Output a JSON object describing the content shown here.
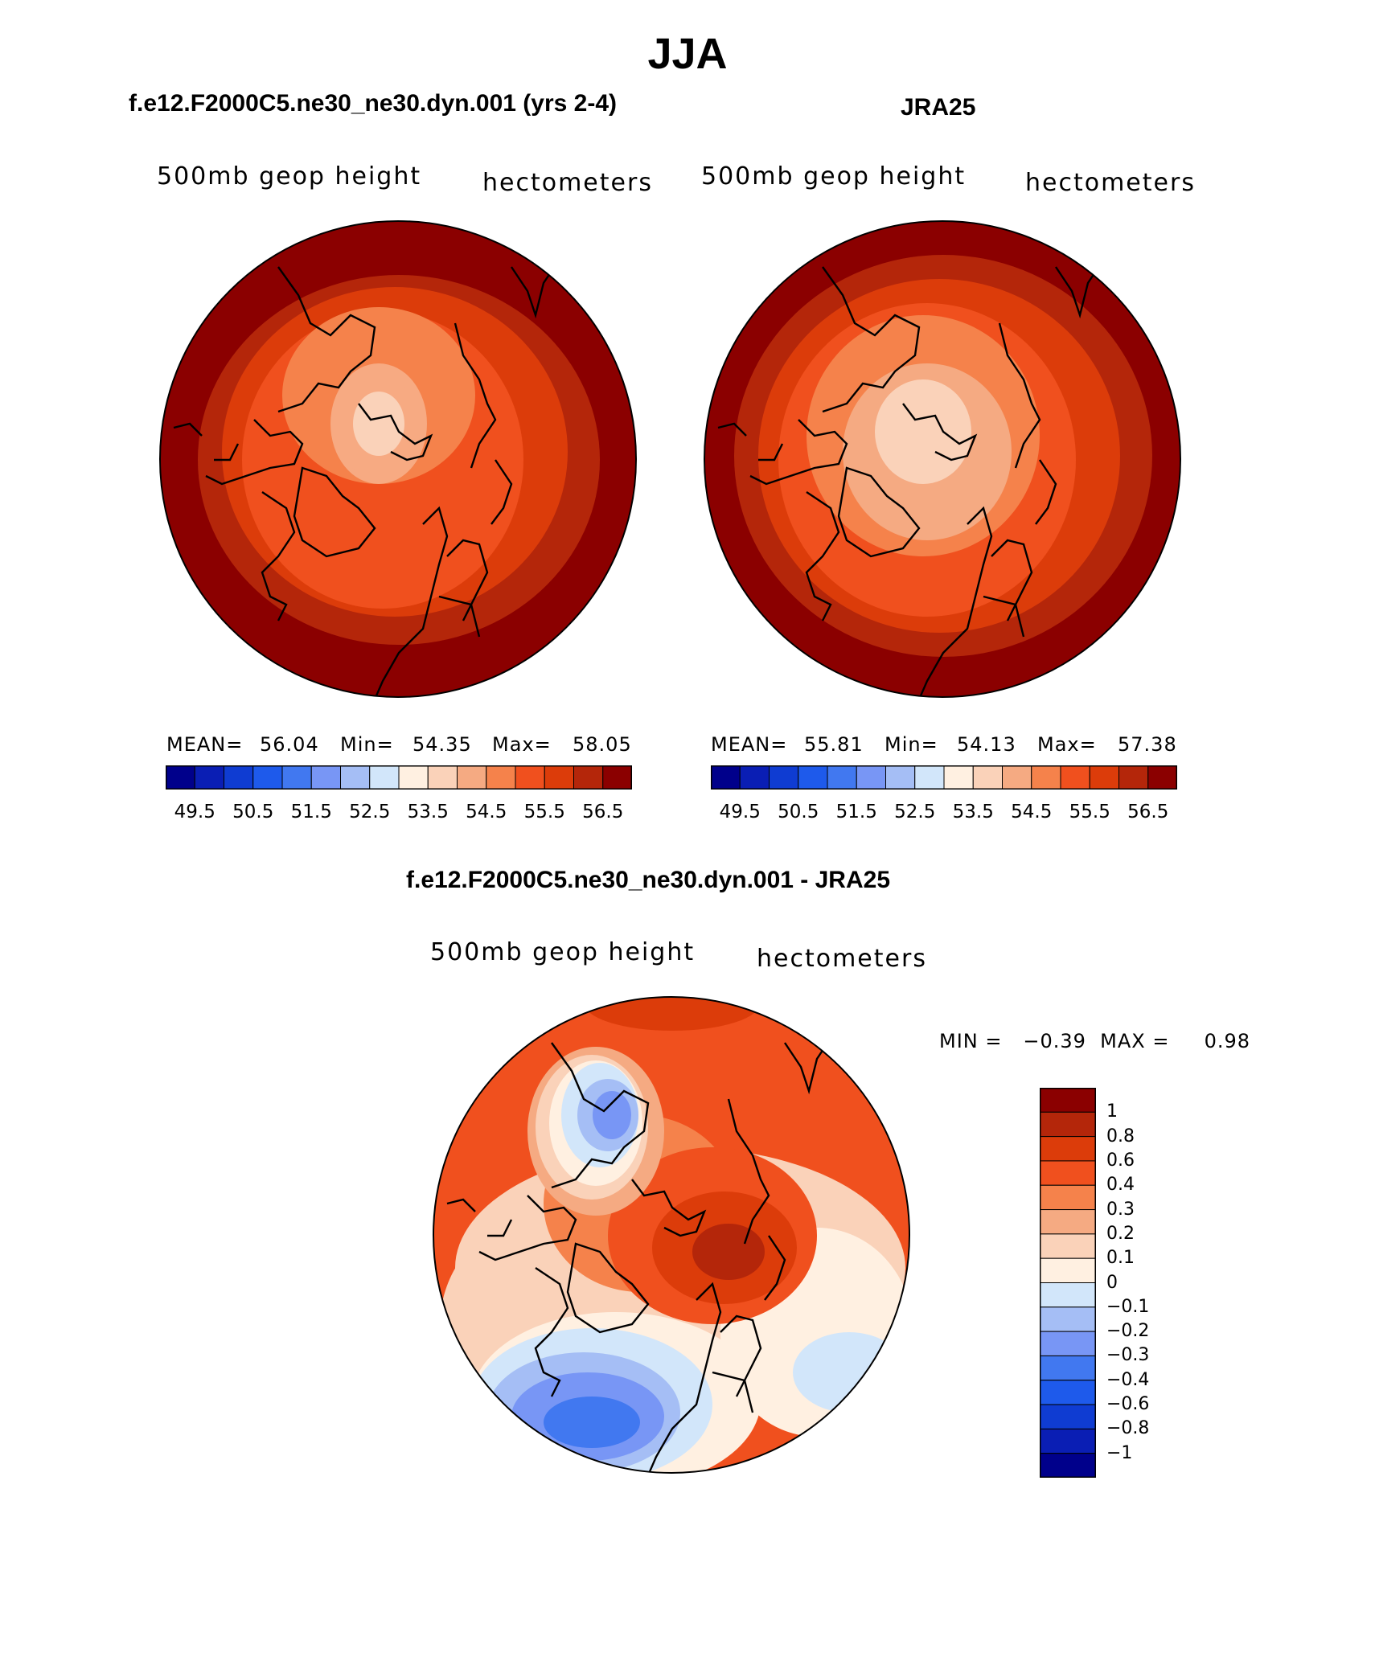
{
  "figure": {
    "title": "JJA"
  },
  "panels": [
    {
      "title": "f.e12.F2000C5.ne30_ne30.dyn.001 (yrs 2-4)",
      "left_label": "500mb geop height",
      "right_label": "hectometers",
      "stats": {
        "mean_label": "MEAN=",
        "mean": "56.04",
        "min_label": "Min=",
        "min": "54.35",
        "max_label": "Max=",
        "max": "58.05"
      }
    },
    {
      "title": "JRA25",
      "left_label": "500mb geop height",
      "right_label": "hectometers",
      "stats": {
        "mean_label": "MEAN=",
        "mean": "55.81",
        "min_label": "Min=",
        "min": "54.13",
        "max_label": "Max=",
        "max": "57.38"
      }
    }
  ],
  "diff_panel": {
    "title": "f.e12.F2000C5.ne30_ne30.dyn.001 - JRA25",
    "left_label": "500mb geop height",
    "right_label": "hectometers",
    "stats_text": "MIN =   −0.39  MAX =     0.98"
  },
  "colorbar_main": {
    "colors": [
      "#00008b",
      "#0a1eb4",
      "#0f3cd2",
      "#1e5aeb",
      "#4178f0",
      "#7896f5",
      "#a5bef5",
      "#d2e6fa",
      "#fff0e1",
      "#fad2b9",
      "#f5aa82",
      "#f5824b",
      "#f0501e",
      "#dc3c0a",
      "#b4260a",
      "#8b0000"
    ],
    "labels": [
      "49.5",
      "50.5",
      "51.5",
      "52.5",
      "53.5",
      "54.5",
      "55.5",
      "56.5"
    ]
  },
  "colorbar_diff": {
    "colors": [
      "#8b0000",
      "#b4260a",
      "#dc3c0a",
      "#f0501e",
      "#f5824b",
      "#f5aa82",
      "#fad2b9",
      "#fff0e1",
      "#d2e6fa",
      "#a5bef5",
      "#7896f5",
      "#4178f0",
      "#1e5aeb",
      "#0f3cd2",
      "#0a1eb4",
      "#00008b"
    ],
    "labels": [
      "1",
      "0.8",
      "0.6",
      "0.4",
      "0.3",
      "0.2",
      "0.1",
      "0",
      "−0.1",
      "−0.2",
      "−0.3",
      "−0.4",
      "−0.6",
      "−0.8",
      "−1"
    ]
  }
}
